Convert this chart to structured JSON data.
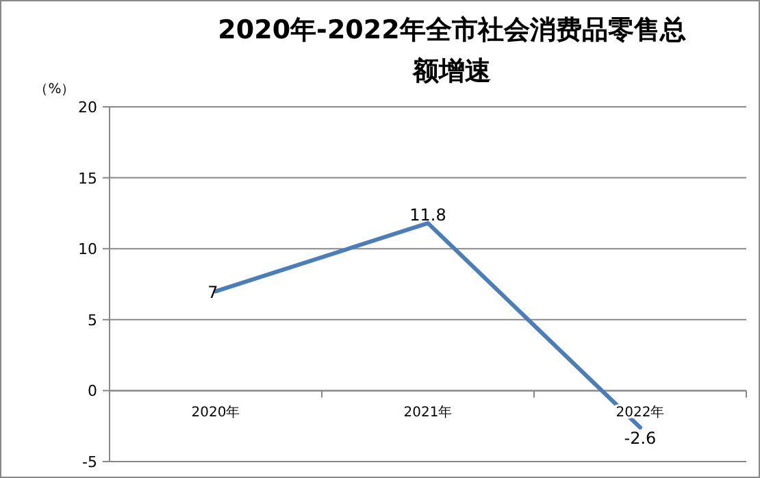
{
  "chart_data": {
    "type": "line",
    "title": "2020年-2022年全市社会消费品零售总额增速",
    "ylabel": "（%）",
    "categories": [
      "2020年",
      "2021年",
      "2022年"
    ],
    "values": [
      7,
      11.8,
      -2.6
    ],
    "color": "#4a7ebb",
    "ylim": [
      -5,
      20
    ],
    "yticks": [
      -5,
      0,
      5,
      10,
      15,
      20
    ],
    "grid": "y",
    "data_labels": true,
    "marker": "none",
    "line_style": "solid"
  }
}
